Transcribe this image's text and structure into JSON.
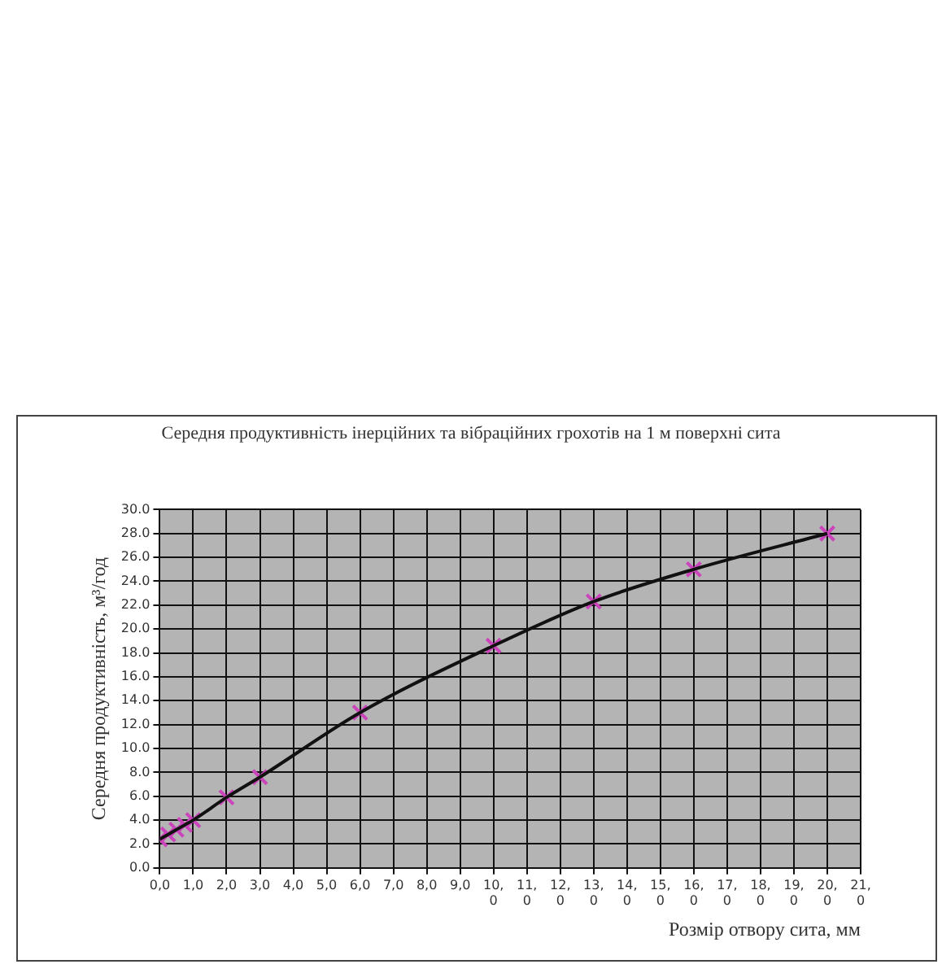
{
  "chart_data": {
    "type": "line",
    "title": "Середня продуктивність інерційних та вібраційних грохотів на 1 м поверхні сита",
    "xlabel": "Розмір отвору сита, мм",
    "ylabel": "Середня продуктивність, м³/год",
    "xlim": [
      0,
      21
    ],
    "xticks": [
      {
        "value": 0,
        "label": "0,0"
      },
      {
        "value": 1,
        "label": "1,0"
      },
      {
        "value": 2,
        "label": "2,0"
      },
      {
        "value": 3,
        "label": "3,0"
      },
      {
        "value": 4,
        "label": "4,0"
      },
      {
        "value": 5,
        "label": "5,0"
      },
      {
        "value": 6,
        "label": "6,0"
      },
      {
        "value": 7,
        "label": "7,0"
      },
      {
        "value": 8,
        "label": "8,0"
      },
      {
        "value": 9,
        "label": "9,0"
      },
      {
        "value": 10,
        "label": "10,0"
      },
      {
        "value": 11,
        "label": "11,0"
      },
      {
        "value": 12,
        "label": "12,0"
      },
      {
        "value": 13,
        "label": "13,0"
      },
      {
        "value": 14,
        "label": "14,0"
      },
      {
        "value": 15,
        "label": "15,0"
      },
      {
        "value": 16,
        "label": "16,0"
      },
      {
        "value": 17,
        "label": "17,0"
      },
      {
        "value": 18,
        "label": "18,0"
      },
      {
        "value": 19,
        "label": "19,0"
      },
      {
        "value": 20,
        "label": "20,0"
      },
      {
        "value": 21,
        "label": "21,0"
      }
    ],
    "ylim": [
      0,
      30
    ],
    "yticks": [
      {
        "value": 0,
        "label": "0.0"
      },
      {
        "value": 2,
        "label": "2.0"
      },
      {
        "value": 4,
        "label": "4.0"
      },
      {
        "value": 6,
        "label": "6.0"
      },
      {
        "value": 8,
        "label": "8.0"
      },
      {
        "value": 10,
        "label": "10.0"
      },
      {
        "value": 12,
        "label": "12.0"
      },
      {
        "value": 14,
        "label": "14.0"
      },
      {
        "value": 16,
        "label": "16.0"
      },
      {
        "value": 18,
        "label": "18.0"
      },
      {
        "value": 20,
        "label": "20.0"
      },
      {
        "value": 22,
        "label": "22.0"
      },
      {
        "value": 24,
        "label": "24.0"
      },
      {
        "value": 26,
        "label": "26.0"
      },
      {
        "value": 28,
        "label": "28.0"
      },
      {
        "value": 30,
        "label": "30.0"
      }
    ],
    "grid": true,
    "legend": false,
    "series": [
      {
        "type": "line",
        "color": "#111111",
        "marker": "none",
        "x": [
          0,
          0.25,
          0.5,
          0.75,
          1,
          2,
          3,
          6,
          10,
          13,
          16,
          20
        ],
        "values": [
          2.4,
          2.8,
          3.2,
          3.6,
          4.0,
          5.9,
          7.6,
          13.0,
          18.6,
          22.3,
          25.0,
          28.0
        ]
      },
      {
        "type": "scatter",
        "color": "#cc44bb",
        "marker": "cross",
        "x": [
          0,
          0.25,
          0.5,
          0.75,
          1,
          2,
          3,
          6,
          10,
          13,
          16,
          20
        ],
        "values": [
          2.4,
          2.8,
          3.2,
          3.6,
          4.0,
          5.9,
          7.6,
          13.0,
          18.6,
          22.3,
          25.0,
          28.0
        ]
      }
    ]
  }
}
